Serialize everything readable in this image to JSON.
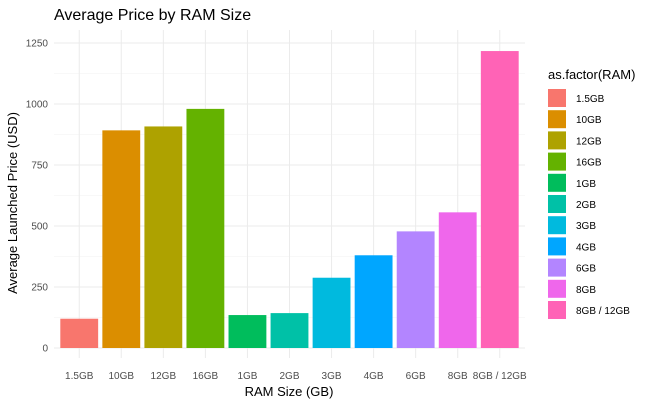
{
  "chart_data": {
    "type": "bar",
    "title": "Average Price by RAM Size",
    "xlabel": "RAM Size (GB)",
    "ylabel": "Average Launched Price (USD)",
    "categories": [
      "1.5GB",
      "10GB",
      "12GB",
      "16GB",
      "1GB",
      "2GB",
      "3GB",
      "4GB",
      "6GB",
      "8GB",
      "8GB / 12GB"
    ],
    "values": [
      120,
      892,
      908,
      980,
      135,
      143,
      288,
      380,
      478,
      556,
      1217
    ],
    "colors": [
      "#F8766D",
      "#DB8E00",
      "#AEA200",
      "#64B200",
      "#00BD5C",
      "#00C1A7",
      "#00BADE",
      "#00A6FF",
      "#B385FF",
      "#EF67EB",
      "#FF63B6"
    ],
    "ylim": [
      0,
      1280
    ],
    "yticks": [
      0,
      250,
      500,
      750,
      1000,
      1250
    ],
    "grid": true,
    "legend": {
      "title": "as.factor(RAM)",
      "position": "right",
      "entries": [
        "1.5GB",
        "10GB",
        "12GB",
        "16GB",
        "1GB",
        "2GB",
        "3GB",
        "4GB",
        "6GB",
        "8GB",
        "8GB / 12GB"
      ]
    }
  }
}
